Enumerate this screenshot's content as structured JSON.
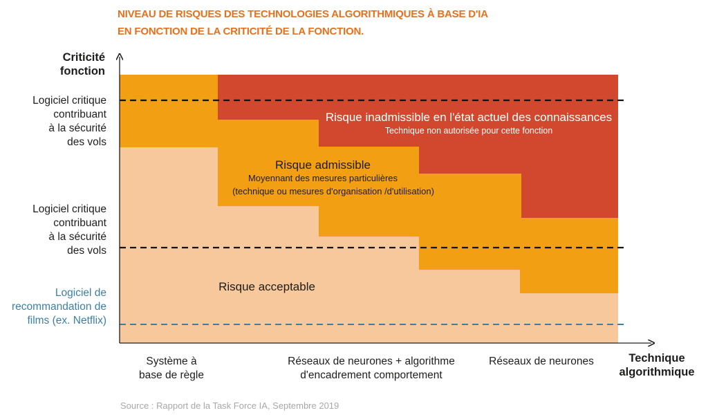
{
  "title": {
    "line1": "NIVEAU DE RISQUES DES TECHNOLOGIES ALGORITHMIQUES À BASE D'IA",
    "line2": "EN FONCTION DE LA CRITICITÉ DE LA FONCTION."
  },
  "y_axis": {
    "title_line1": "Criticité",
    "title_line2": "fonction",
    "levels": [
      {
        "lines": [
          "Logiciel critique",
          "contribuant",
          "à la sécurité",
          "des vols"
        ]
      },
      {
        "lines": [
          "Logiciel critique",
          "contribuant",
          "à la sécurité",
          "des vols"
        ]
      },
      {
        "lines": [
          "Logiciel de",
          "recommandation de",
          "films (ex. Netflix)"
        ]
      }
    ]
  },
  "x_axis": {
    "title_line1": "Technique",
    "title_line2": "algorithmique",
    "categories": [
      {
        "lines": [
          "Système à",
          "base de règle"
        ]
      },
      {
        "lines": [
          "Réseaux de neurones + algorithme",
          "d'encadrement comportement"
        ]
      },
      {
        "lines": [
          "Réseaux de neurones"
        ]
      }
    ]
  },
  "zones": {
    "inadmissible": {
      "title": "Risque inadmissible en l'état actuel des connaissances",
      "subtitle": "Technique non autorisée pour cette fonction",
      "color": "#d2482e"
    },
    "admissible": {
      "title": "Risque admissible",
      "subtitle1": "Moyennant des mesures particulières",
      "subtitle2": "(technique ou mesures d'organisation /d'utilisation)",
      "color": "#f29f14"
    },
    "acceptable": {
      "title": "Risque acceptable",
      "color": "#f6c89b"
    }
  },
  "source": "Source : Rapport de la Task Force IA, Septembre 2019"
}
